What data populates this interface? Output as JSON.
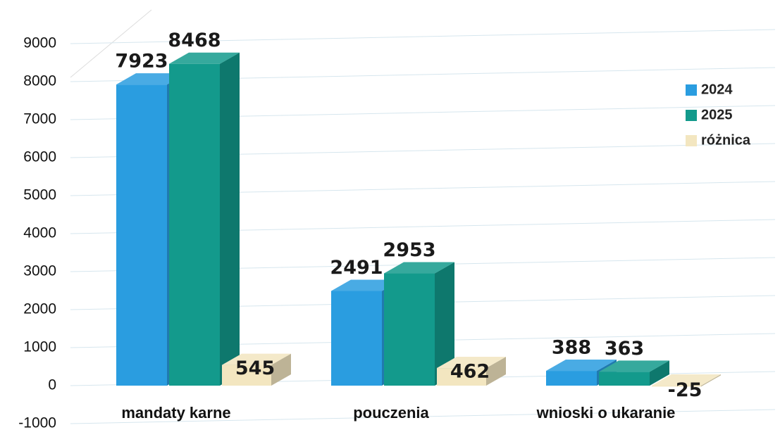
{
  "chart_data": {
    "type": "bar3d",
    "categories": [
      "mandaty karne",
      "pouczenia",
      "wnioski o ukaranie"
    ],
    "series": [
      {
        "name": "2024",
        "color": "#2a9de0",
        "values": [
          7923,
          2491,
          388
        ]
      },
      {
        "name": "2025",
        "color": "#139a8c",
        "values": [
          8468,
          2953,
          363
        ]
      },
      {
        "name": "różnica",
        "color": "#f3e6c0",
        "values": [
          545,
          462,
          -25
        ]
      }
    ],
    "ylim": [
      -1000,
      9000
    ],
    "yticks": [
      -1000,
      0,
      1000,
      2000,
      3000,
      4000,
      5000,
      6000,
      7000,
      8000,
      9000
    ],
    "grid": true,
    "legend": "right"
  }
}
